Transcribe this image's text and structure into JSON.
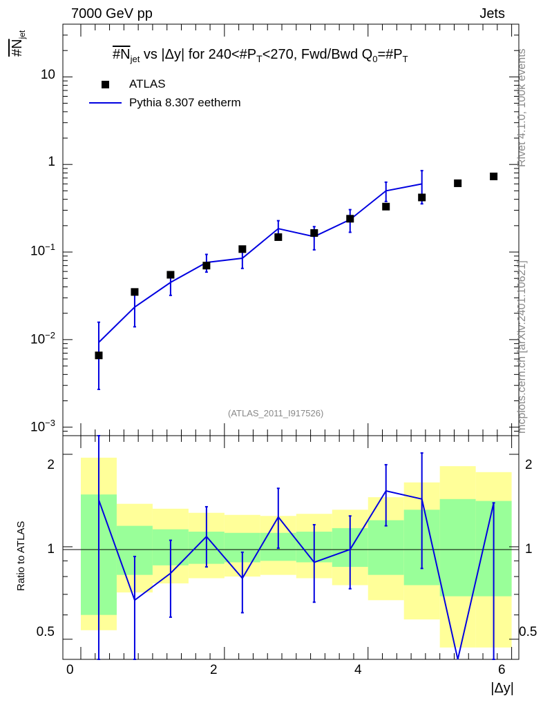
{
  "header": {
    "left": "7000 GeV pp",
    "right": "Jets"
  },
  "side_labels": {
    "rivet": "Rivet 4.1.0,  100k events",
    "mcplots": "mcplots.cern.ch [arXiv:2401.10621]"
  },
  "watermark": "(ATLAS_2011_I917526)",
  "chart_data": {
    "type": "scatter",
    "title": "#N_jet vs |Δy| for 240<#P_T<270, Fwd/Bwd Q_0=#P_T",
    "title_parts": {
      "a": "#N",
      "b": "jet",
      "c": " vs |Δy|  for 240<#P",
      "d": "T",
      "e": "<270, Fwd/Bwd Q",
      "f": "0",
      "g": "=#P",
      "h": "T"
    },
    "xlabel": "|Δy|",
    "ylabel": {
      "main": "#N",
      "sub": "jet"
    },
    "xlim": [
      -0.25,
      6.1
    ],
    "x_ticks": [
      "0",
      "2",
      "4",
      "6"
    ],
    "main_panel": {
      "yscale": "log",
      "ylim": [
        0.0008,
        40
      ],
      "y_ticks": [
        {
          "value": 10,
          "label": "10"
        },
        {
          "value": 1,
          "label": "1"
        },
        {
          "value": 0.1,
          "base": "10",
          "exp": "−1"
        },
        {
          "value": 0.01,
          "base": "10",
          "exp": "−2"
        },
        {
          "value": 0.001,
          "base": "10",
          "exp": "−3"
        }
      ]
    },
    "ratio_panel": {
      "ylabel": "Ratio to ATLAS",
      "yscale": "log",
      "ylim": [
        0.43,
        2.3
      ],
      "y_ticks": [
        {
          "value": 2,
          "label": "2"
        },
        {
          "value": 1,
          "label": "1"
        },
        {
          "value": 0.5,
          "label": "0.5"
        }
      ],
      "mc_ratio": [
        {
          "x": 0.25,
          "y": 1.42,
          "lo": 0.001,
          "hi": 2.42
        },
        {
          "x": 0.75,
          "y": 0.67,
          "lo": 0.001,
          "hi": 0.93
        },
        {
          "x": 1.25,
          "y": 0.82,
          "lo": 0.59,
          "hi": 1.05
        },
        {
          "x": 1.75,
          "y": 1.08,
          "lo": 0.86,
          "hi": 1.35
        },
        {
          "x": 2.25,
          "y": 0.79,
          "lo": 0.61,
          "hi": 0.96
        },
        {
          "x": 2.75,
          "y": 1.25,
          "lo": 0.99,
          "hi": 1.55
        },
        {
          "x": 3.25,
          "y": 0.89,
          "lo": 0.66,
          "hi": 1.18
        },
        {
          "x": 3.75,
          "y": 0.98,
          "lo": 0.73,
          "hi": 1.26
        },
        {
          "x": 4.25,
          "y": 1.52,
          "lo": 1.17,
          "hi": 1.85
        },
        {
          "x": 4.75,
          "y": 1.43,
          "lo": 0.85,
          "hi": 2.02
        },
        {
          "x": 5.25,
          "y": 0.001
        },
        {
          "x": 5.75,
          "y": 1.39,
          "lo": 0.001,
          "hi": 1.39
        }
      ],
      "bands": [
        {
          "x0": 0.0,
          "x1": 0.5,
          "g_lo": 0.6,
          "g_hi": 1.48,
          "y_lo": 0.535,
          "y_hi": 1.95
        },
        {
          "x0": 0.5,
          "x1": 1.0,
          "g_lo": 0.81,
          "g_hi": 1.17,
          "y_lo": 0.71,
          "y_hi": 1.38
        },
        {
          "x0": 1.0,
          "x1": 1.5,
          "g_lo": 0.87,
          "g_hi": 1.14,
          "y_lo": 0.76,
          "y_hi": 1.33
        },
        {
          "x0": 1.5,
          "x1": 2.0,
          "g_lo": 0.88,
          "g_hi": 1.12,
          "y_lo": 0.79,
          "y_hi": 1.29
        },
        {
          "x0": 2.0,
          "x1": 2.5,
          "g_lo": 0.89,
          "g_hi": 1.11,
          "y_lo": 0.8,
          "y_hi": 1.27
        },
        {
          "x0": 2.5,
          "x1": 3.0,
          "g_lo": 0.9,
          "g_hi": 1.11,
          "y_lo": 0.81,
          "y_hi": 1.26
        },
        {
          "x0": 3.0,
          "x1": 3.5,
          "g_lo": 0.89,
          "g_hi": 1.12,
          "y_lo": 0.79,
          "y_hi": 1.28
        },
        {
          "x0": 3.5,
          "x1": 4.0,
          "g_lo": 0.86,
          "g_hi": 1.15,
          "y_lo": 0.75,
          "y_hi": 1.32
        },
        {
          "x0": 4.0,
          "x1": 4.5,
          "g_lo": 0.81,
          "g_hi": 1.22,
          "y_lo": 0.67,
          "y_hi": 1.45
        },
        {
          "x0": 4.5,
          "x1": 5.0,
          "g_lo": 0.75,
          "g_hi": 1.32,
          "y_lo": 0.58,
          "y_hi": 1.62
        },
        {
          "x0": 5.0,
          "x1": 5.5,
          "g_lo": 0.69,
          "g_hi": 1.43,
          "y_lo": 0.47,
          "y_hi": 1.83
        },
        {
          "x0": 5.5,
          "x1": 6.0,
          "g_lo": 0.69,
          "g_hi": 1.41,
          "y_lo": 0.47,
          "y_hi": 1.75
        }
      ]
    },
    "series": [
      {
        "name": "ATLAS",
        "style": "markers",
        "color": "#000000",
        "points": [
          {
            "x": 0.25,
            "y": 0.0066
          },
          {
            "x": 0.75,
            "y": 0.035
          },
          {
            "x": 1.25,
            "y": 0.055
          },
          {
            "x": 1.75,
            "y": 0.07
          },
          {
            "x": 2.25,
            "y": 0.108
          },
          {
            "x": 2.75,
            "y": 0.148
          },
          {
            "x": 3.25,
            "y": 0.165
          },
          {
            "x": 3.75,
            "y": 0.24
          },
          {
            "x": 4.25,
            "y": 0.33
          },
          {
            "x": 4.75,
            "y": 0.42
          },
          {
            "x": 5.25,
            "y": 0.61
          },
          {
            "x": 5.75,
            "y": 0.73
          }
        ]
      },
      {
        "name": "Pythia 8.307 eetherm",
        "style": "line",
        "color": "#0000e0",
        "points": [
          {
            "x": 0.25,
            "y": 0.0093,
            "lo": 0.0027,
            "hi": 0.0158
          },
          {
            "x": 0.75,
            "y": 0.0235,
            "lo": 0.014,
            "hi": 0.033
          },
          {
            "x": 1.25,
            "y": 0.045,
            "lo": 0.032,
            "hi": 0.058
          },
          {
            "x": 1.75,
            "y": 0.076,
            "lo": 0.059,
            "hi": 0.094
          },
          {
            "x": 2.25,
            "y": 0.085,
            "lo": 0.065,
            "hi": 0.105
          },
          {
            "x": 2.75,
            "y": 0.185,
            "lo": 0.146,
            "hi": 0.228
          },
          {
            "x": 3.25,
            "y": 0.15,
            "lo": 0.106,
            "hi": 0.195
          },
          {
            "x": 3.75,
            "y": 0.235,
            "lo": 0.168,
            "hi": 0.305
          },
          {
            "x": 4.25,
            "y": 0.5,
            "lo": 0.378,
            "hi": 0.628
          },
          {
            "x": 4.75,
            "y": 0.6,
            "lo": 0.355,
            "hi": 0.85
          }
        ]
      }
    ]
  }
}
